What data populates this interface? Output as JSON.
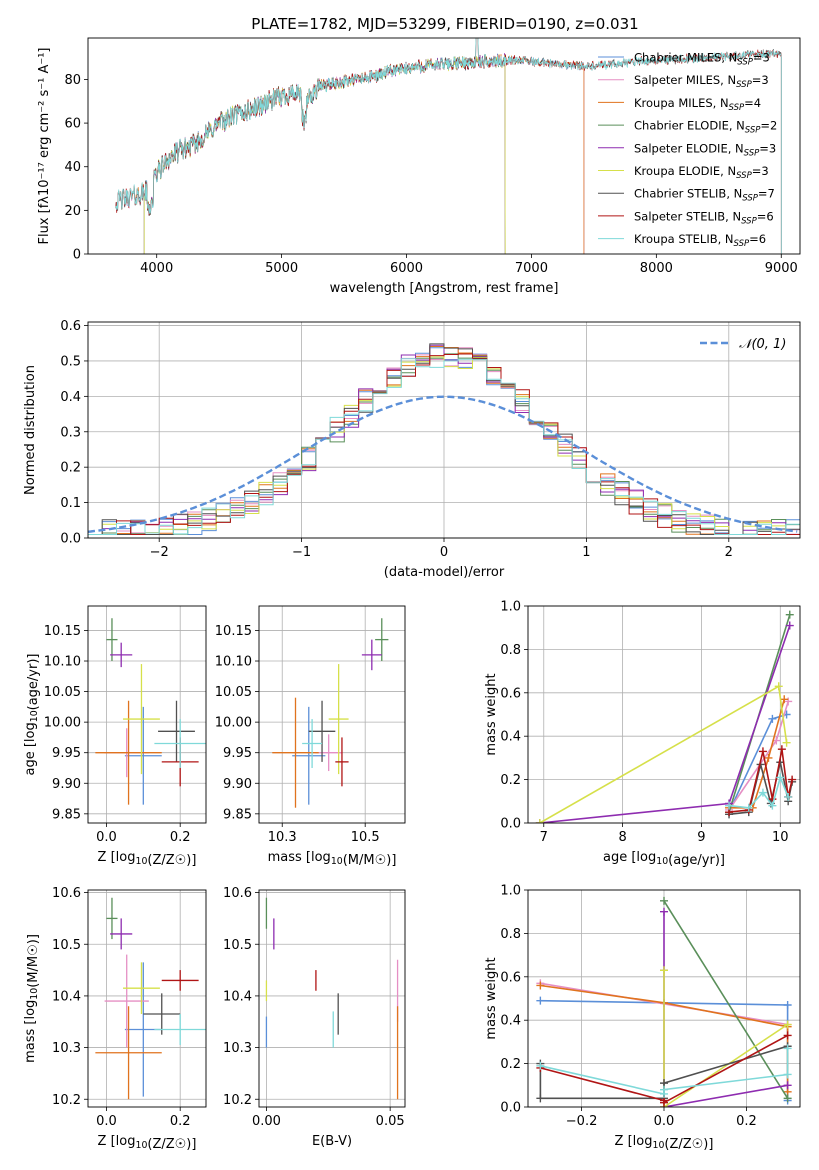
{
  "figure": {
    "title": "PLATE=1782, MJD=53299, FIBERID=0190, z=0.031"
  },
  "colors": {
    "Chabrier MILES": "#5b8fd8",
    "Salpeter MILES": "#e58fc4",
    "Kroupa MILES": "#e0731e",
    "Chabrier ELODIE": "#5a8f5a",
    "Salpeter ELODIE": "#8e2cb0",
    "Kroupa ELODIE": "#d6e04a",
    "Chabrier STELIB": "#505050",
    "Salpeter STELIB": "#b01515",
    "Kroupa STELIB": "#7fd9d9"
  },
  "chart_data": [
    {
      "id": "spectrum",
      "type": "line",
      "title": "PLATE=1782, MJD=53299, FIBERID=0190, z=0.031",
      "xlabel": "wavelength [Angstrom, rest frame]",
      "ylabel": "Flux [fλ10⁻¹⁷ erg cm⁻² s⁻¹ A⁻¹]",
      "xlim": [
        3450,
        9150
      ],
      "ylim": [
        0,
        99
      ],
      "xticks": [
        4000,
        5000,
        6000,
        7000,
        8000,
        9000
      ],
      "yticks": [
        0,
        20,
        40,
        60,
        80
      ],
      "grid": false,
      "legend": "top-right",
      "continuum": [
        [
          3680,
          24
        ],
        [
          3780,
          26
        ],
        [
          3850,
          27
        ],
        [
          3950,
          30
        ],
        [
          4000,
          37
        ],
        [
          4100,
          44
        ],
        [
          4200,
          48
        ],
        [
          4300,
          50
        ],
        [
          4400,
          55
        ],
        [
          4500,
          60
        ],
        [
          4600,
          63
        ],
        [
          4700,
          65
        ],
        [
          4800,
          67
        ],
        [
          4900,
          70
        ],
        [
          5000,
          72
        ],
        [
          5100,
          74
        ],
        [
          5200,
          70
        ],
        [
          5300,
          77
        ],
        [
          5500,
          79
        ],
        [
          5700,
          81
        ],
        [
          5900,
          84
        ],
        [
          6100,
          86
        ],
        [
          6300,
          87
        ],
        [
          6600,
          88
        ],
        [
          6900,
          89
        ],
        [
          7200,
          87
        ],
        [
          7500,
          86
        ],
        [
          7800,
          88
        ],
        [
          8100,
          89
        ],
        [
          8400,
          90
        ],
        [
          8700,
          91
        ],
        [
          9000,
          92
        ]
      ],
      "series": [
        {
          "name": "Chabrier MILES, N_SSP=3",
          "label": "Chabrier MILES, N",
          "sub": "SSP",
          "suffix": "=3",
          "start": 3690,
          "end": 7420
        },
        {
          "name": "Salpeter MILES, N_SSP=3",
          "label": "Salpeter MILES, N",
          "sub": "SSP",
          "suffix": "=3",
          "start": 3690,
          "end": 7420
        },
        {
          "name": "Kroupa MILES, N_SSP=4",
          "label": "Kroupa MILES, N",
          "sub": "SSP",
          "suffix": "=4",
          "start": 3690,
          "end": 7420
        },
        {
          "name": "Chabrier ELODIE, N_SSP=2",
          "label": "Chabrier ELODIE, N",
          "sub": "SSP",
          "suffix": "=2",
          "start": 3900,
          "end": 6790
        },
        {
          "name": "Salpeter ELODIE, N_SSP=3",
          "label": "Salpeter ELODIE, N",
          "sub": "SSP",
          "suffix": "=3",
          "start": 3900,
          "end": 6790
        },
        {
          "name": "Kroupa ELODIE, N_SSP=3",
          "label": "Kroupa ELODIE, N",
          "sub": "SSP",
          "suffix": "=3",
          "start": 3900,
          "end": 6790
        },
        {
          "name": "Chabrier STELIB, N_SSP=7",
          "label": "Chabrier STELIB, N",
          "sub": "SSP",
          "suffix": "=7",
          "start": 3670,
          "end": 9000
        },
        {
          "name": "Salpeter STELIB, N_SSP=6",
          "label": "Salpeter STELIB, N",
          "sub": "SSP",
          "suffix": "=6",
          "start": 3670,
          "end": 9000
        },
        {
          "name": "Kroupa STELIB, N_SSP=6",
          "label": "Kroupa STELIB, N",
          "sub": "SSP",
          "suffix": "=6",
          "start": 3670,
          "end": 9000
        }
      ]
    },
    {
      "id": "residuals",
      "type": "histogram",
      "xlabel": "(data-model)/error",
      "ylabel": "Normed distribution",
      "xlim": [
        -2.5,
        2.5
      ],
      "ylim": [
        0,
        0.61
      ],
      "xticks": [
        -2,
        -1,
        0,
        1,
        2
      ],
      "yticks": [
        0.0,
        0.1,
        0.2,
        0.3,
        0.4,
        0.5,
        0.6
      ],
      "grid": true,
      "legend": "top-right",
      "legend_label": "𝒩(0, 1)",
      "bin_width": 0.1
    },
    {
      "id": "age-vs-Z",
      "type": "scatter",
      "xlabel": "Z [log10(Z/Z☉)]",
      "ylabel": "age  [log10(age/yr)]",
      "xlim": [
        -0.05,
        0.27
      ],
      "ylim": [
        9.835,
        10.19
      ],
      "xticks": [
        0.0,
        0.2
      ],
      "yticks": [
        9.85,
        9.9,
        9.95,
        10.0,
        10.05,
        10.1,
        10.15
      ],
      "grid": true,
      "points": [
        {
          "model": "Chabrier MILES",
          "x": 0.1,
          "y": 9.945,
          "xerr": 0.05,
          "yerr": 0.08
        },
        {
          "model": "Salpeter MILES",
          "x": 0.055,
          "y": 9.95,
          "xerr": 0.06,
          "yerr": 0.04
        },
        {
          "model": "Kroupa MILES",
          "x": 0.06,
          "y": 9.95,
          "xerr": 0.09,
          "yerr": 0.085
        },
        {
          "model": "Chabrier ELODIE",
          "x": 0.015,
          "y": 10.135,
          "xerr": 0.015,
          "yerr": 0.035
        },
        {
          "model": "Salpeter ELODIE",
          "x": 0.04,
          "y": 10.11,
          "xerr": 0.03,
          "yerr": 0.02
        },
        {
          "model": "Kroupa ELODIE",
          "x": 0.095,
          "y": 10.005,
          "xerr": 0.05,
          "yerr": 0.09
        },
        {
          "model": "Chabrier STELIB",
          "x": 0.19,
          "y": 9.985,
          "xerr": 0.05,
          "yerr": 0.05
        },
        {
          "model": "Salpeter STELIB",
          "x": 0.2,
          "y": 9.935,
          "xerr": 0.05,
          "yerr": 0.04
        },
        {
          "model": "Kroupa STELIB",
          "x": 0.2,
          "y": 9.965,
          "xerr": 0.07,
          "yerr": 0.04
        }
      ]
    },
    {
      "id": "age-vs-mass",
      "type": "scatter",
      "xlabel": "mass [log10(M/M☉)]",
      "ylabel": "",
      "xlim": [
        10.18,
        10.62
      ],
      "ylim": [
        9.835,
        10.19
      ],
      "xticks": [
        10.25,
        10.5
      ],
      "yticks": [
        9.85,
        9.9,
        9.95,
        10.0,
        10.05,
        10.1,
        10.15
      ],
      "grid": true,
      "points": [
        {
          "model": "Chabrier MILES",
          "x": 10.33,
          "y": 9.945,
          "xerr": 0.05,
          "yerr": 0.08
        },
        {
          "model": "Salpeter MILES",
          "x": 10.39,
          "y": 9.95,
          "xerr": 0.04,
          "yerr": 0.03
        },
        {
          "model": "Kroupa MILES",
          "x": 10.29,
          "y": 9.95,
          "xerr": 0.07,
          "yerr": 0.09
        },
        {
          "model": "Chabrier ELODIE",
          "x": 10.55,
          "y": 10.135,
          "xerr": 0.02,
          "yerr": 0.035
        },
        {
          "model": "Salpeter ELODIE",
          "x": 10.52,
          "y": 10.11,
          "xerr": 0.03,
          "yerr": 0.025
        },
        {
          "model": "Kroupa ELODIE",
          "x": 10.42,
          "y": 10.005,
          "xerr": 0.03,
          "yerr": 0.09
        },
        {
          "model": "Chabrier STELIB",
          "x": 10.37,
          "y": 9.985,
          "xerr": 0.04,
          "yerr": 0.05
        },
        {
          "model": "Salpeter STELIB",
          "x": 10.43,
          "y": 9.935,
          "xerr": 0.02,
          "yerr": 0.04
        },
        {
          "model": "Kroupa STELIB",
          "x": 10.34,
          "y": 9.965,
          "xerr": 0.03,
          "yerr": 0.04
        }
      ]
    },
    {
      "id": "mass-weight-vs-age",
      "type": "line",
      "xlabel": "age  [log10(age/yr)]",
      "ylabel": "mass weight",
      "xlim": [
        6.8,
        10.25
      ],
      "ylim": [
        0,
        1.0
      ],
      "xticks": [
        7,
        8,
        9,
        10
      ],
      "yticks": [
        0.0,
        0.2,
        0.4,
        0.6,
        0.8,
        1.0
      ],
      "grid": true,
      "series": [
        {
          "model": "Chabrier MILES",
          "x": [
            9.35,
            9.9,
            10.08
          ],
          "y": [
            0.05,
            0.48,
            0.5
          ]
        },
        {
          "model": "Salpeter MILES",
          "x": [
            9.35,
            9.95,
            10.1
          ],
          "y": [
            0.06,
            0.38,
            0.56
          ]
        },
        {
          "model": "Kroupa MILES",
          "x": [
            9.35,
            9.65,
            9.85,
            10.05
          ],
          "y": [
            0.07,
            0.07,
            0.3,
            0.57
          ]
        },
        {
          "model": "Chabrier ELODIE",
          "x": [
            9.35,
            10.12
          ],
          "y": [
            0.05,
            0.96
          ]
        },
        {
          "model": "Salpeter ELODIE",
          "x": [
            6.95,
            9.35,
            10.12
          ],
          "y": [
            0.0,
            0.09,
            0.91
          ]
        },
        {
          "model": "Kroupa ELODIE",
          "x": [
            6.95,
            9.98,
            10.08
          ],
          "y": [
            0.0,
            0.63,
            0.37
          ]
        },
        {
          "model": "Chabrier STELIB",
          "x": [
            9.35,
            9.6,
            9.75,
            9.88,
            10.0,
            10.1,
            10.15
          ],
          "y": [
            0.04,
            0.05,
            0.27,
            0.09,
            0.28,
            0.1,
            0.19
          ]
        },
        {
          "model": "Salpeter STELIB",
          "x": [
            9.35,
            9.6,
            9.78,
            9.9,
            10.02,
            10.1,
            10.15
          ],
          "y": [
            0.05,
            0.06,
            0.33,
            0.11,
            0.34,
            0.12,
            0.2
          ]
        },
        {
          "model": "Kroupa STELIB",
          "x": [
            9.35,
            9.6,
            9.78,
            9.9,
            10.0,
            10.1
          ],
          "y": [
            0.08,
            0.07,
            0.14,
            0.08,
            0.21,
            0.12
          ]
        }
      ]
    },
    {
      "id": "mass-vs-Z",
      "type": "scatter",
      "xlabel": "Z [log10(Z/Z☉)]",
      "ylabel": "mass [log10(M/M☉)]",
      "xlim": [
        -0.05,
        0.27
      ],
      "ylim": [
        10.185,
        10.605
      ],
      "xticks": [
        0.0,
        0.2
      ],
      "yticks": [
        10.2,
        10.3,
        10.4,
        10.5,
        10.6
      ],
      "grid": true,
      "points": [
        {
          "model": "Chabrier MILES",
          "x": 0.1,
          "y": 10.335,
          "xerr": 0.05,
          "yerr": 0.13
        },
        {
          "model": "Salpeter MILES",
          "x": 0.055,
          "y": 10.39,
          "xerr": 0.06,
          "yerr": 0.09
        },
        {
          "model": "Kroupa MILES",
          "x": 0.06,
          "y": 10.29,
          "xerr": 0.09,
          "yerr": 0.09
        },
        {
          "model": "Chabrier ELODIE",
          "x": 0.015,
          "y": 10.55,
          "xerr": 0.015,
          "yerr": 0.04
        },
        {
          "model": "Salpeter ELODIE",
          "x": 0.04,
          "y": 10.52,
          "xerr": 0.03,
          "yerr": 0.03
        },
        {
          "model": "Kroupa ELODIE",
          "x": 0.095,
          "y": 10.415,
          "xerr": 0.05,
          "yerr": 0.05
        },
        {
          "model": "Chabrier STELIB",
          "x": 0.15,
          "y": 10.365,
          "xerr": 0.05,
          "yerr": 0.04
        },
        {
          "model": "Salpeter STELIB",
          "x": 0.2,
          "y": 10.43,
          "xerr": 0.05,
          "yerr": 0.02
        },
        {
          "model": "Kroupa STELIB",
          "x": 0.2,
          "y": 10.335,
          "xerr": 0.07,
          "yerr": 0.03
        }
      ]
    },
    {
      "id": "mass-vs-EBV",
      "type": "scatter",
      "xlabel": "E(B-V)",
      "ylabel": "",
      "xlim": [
        -0.003,
        0.056
      ],
      "ylim": [
        10.185,
        10.605
      ],
      "xticks": [
        0.0,
        0.05
      ],
      "yticks": [
        10.2,
        10.3,
        10.4,
        10.5,
        10.6
      ],
      "grid": true,
      "points": [
        {
          "model": "Chabrier MILES",
          "x": 0.0,
          "y": 10.33,
          "xerr": 0,
          "yerr": 0.03
        },
        {
          "model": "Salpeter MILES",
          "x": 0.053,
          "y": 10.41,
          "xerr": 0,
          "yerr": 0.06
        },
        {
          "model": "Kroupa MILES",
          "x": 0.053,
          "y": 10.29,
          "xerr": 0,
          "yerr": 0.09
        },
        {
          "model": "Chabrier ELODIE",
          "x": 0.0,
          "y": 10.56,
          "xerr": 0,
          "yerr": 0.03
        },
        {
          "model": "Salpeter ELODIE",
          "x": 0.003,
          "y": 10.52,
          "xerr": 0,
          "yerr": 0.03
        },
        {
          "model": "Kroupa ELODIE",
          "x": 0.0,
          "y": 10.41,
          "xerr": 0,
          "yerr": 0.02
        },
        {
          "model": "Chabrier STELIB",
          "x": 0.029,
          "y": 10.365,
          "xerr": 0,
          "yerr": 0.04
        },
        {
          "model": "Salpeter STELIB",
          "x": 0.02,
          "y": 10.43,
          "xerr": 0,
          "yerr": 0.02
        },
        {
          "model": "Kroupa STELIB",
          "x": 0.027,
          "y": 10.335,
          "xerr": 0,
          "yerr": 0.035
        }
      ]
    },
    {
      "id": "mass-weight-vs-Z",
      "type": "line",
      "xlabel": "Z [log10(Z/Z☉)]",
      "ylabel": "mass weight",
      "xlim": [
        -0.33,
        0.33
      ],
      "ylim": [
        0,
        1.0
      ],
      "xticks": [
        -0.2,
        0.0,
        0.2
      ],
      "yticks": [
        0.0,
        0.2,
        0.4,
        0.6,
        0.8,
        1.0
      ],
      "grid": true,
      "series": [
        {
          "model": "Chabrier MILES",
          "x": [
            -0.3,
            0.0,
            0.3,
            0.3
          ],
          "y": [
            0.49,
            0.48,
            0.47,
            0.03
          ]
        },
        {
          "model": "Salpeter MILES",
          "x": [
            -0.3,
            0.3
          ],
          "y": [
            0.57,
            0.38
          ]
        },
        {
          "model": "Kroupa MILES",
          "x": [
            -0.3,
            0.0,
            0.3,
            0.3
          ],
          "y": [
            0.56,
            0.48,
            0.37,
            0.07
          ]
        },
        {
          "model": "Chabrier ELODIE",
          "x": [
            0.0,
            0.3
          ],
          "y": [
            0.95,
            0.04
          ]
        },
        {
          "model": "Salpeter ELODIE",
          "x": [
            0.0,
            0.0,
            0.0,
            0.3
          ],
          "y": [
            0.9,
            0.63,
            0.0,
            0.1
          ]
        },
        {
          "model": "Kroupa ELODIE",
          "x": [
            0.0,
            0.0,
            0.3
          ],
          "y": [
            0.63,
            0.0,
            0.38
          ]
        },
        {
          "model": "Chabrier STELIB",
          "x": [
            -0.3,
            -0.3,
            0.0,
            0.0,
            0.3
          ],
          "y": [
            0.2,
            0.04,
            0.04,
            0.11,
            0.28
          ]
        },
        {
          "model": "Salpeter STELIB",
          "x": [
            -0.3,
            0.0,
            0.0,
            0.3
          ],
          "y": [
            0.18,
            0.03,
            0.02,
            0.33
          ]
        },
        {
          "model": "Kroupa STELIB",
          "x": [
            -0.3,
            0.0,
            0.0,
            0.3,
            0.3
          ],
          "y": [
            0.19,
            0.06,
            0.08,
            0.15,
            0.27
          ]
        }
      ]
    }
  ]
}
